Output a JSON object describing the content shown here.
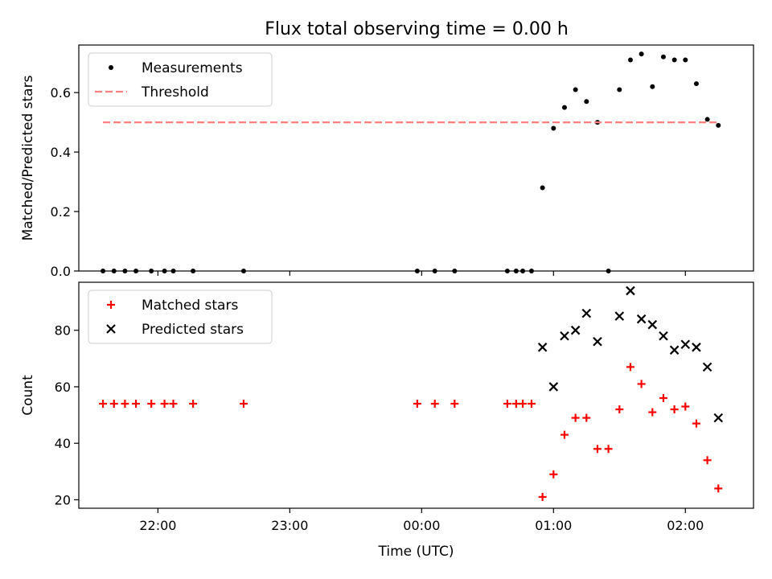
{
  "title": "Flux total observing time = 0.00 h",
  "colors": {
    "measurements": "#000000",
    "threshold": "#ff7f7f",
    "matched": "#ff0000",
    "predicted": "#000000"
  },
  "chart_data": [
    {
      "type": "scatter",
      "title": "Flux total observing time = 0.00 h",
      "xlabel": "",
      "ylabel": "Matched/Predicted stars",
      "xlim": [
        "21:24",
        "02:31"
      ],
      "ylim": [
        0,
        0.76
      ],
      "x_ticks": [
        "22:00",
        "23:00",
        "00:00",
        "01:00",
        "02:00"
      ],
      "y_ticks": [
        "0.0",
        "0.2",
        "0.4",
        "0.6"
      ],
      "legend": {
        "position": "top-left",
        "entries": [
          "Measurements",
          "Threshold"
        ]
      },
      "grid": false,
      "series": [
        {
          "name": "Measurements",
          "marker": "dot",
          "points": [
            [
              "21:35",
              0
            ],
            [
              "21:40",
              0
            ],
            [
              "21:45",
              0
            ],
            [
              "21:50",
              0
            ],
            [
              "21:57",
              0
            ],
            [
              "22:03",
              0
            ],
            [
              "22:07",
              0
            ],
            [
              "22:16",
              0
            ],
            [
              "22:39",
              0
            ],
            [
              "23:58",
              0
            ],
            [
              "00:06",
              0
            ],
            [
              "00:15",
              0
            ],
            [
              "00:39",
              0
            ],
            [
              "00:43",
              0
            ],
            [
              "00:46",
              0
            ],
            [
              "00:50",
              0
            ],
            [
              "00:55",
              0.28
            ],
            [
              "01:00",
              0.48
            ],
            [
              "01:05",
              0.55
            ],
            [
              "01:10",
              0.61
            ],
            [
              "01:15",
              0.57
            ],
            [
              "01:20",
              0.5
            ],
            [
              "01:25",
              0
            ],
            [
              "01:30",
              0.61
            ],
            [
              "01:35",
              0.71
            ],
            [
              "01:40",
              0.73
            ],
            [
              "01:45",
              0.62
            ],
            [
              "01:50",
              0.72
            ],
            [
              "01:55",
              0.71
            ],
            [
              "02:00",
              0.71
            ],
            [
              "02:05",
              0.63
            ],
            [
              "02:10",
              0.51
            ],
            [
              "02:15",
              0.49
            ]
          ]
        },
        {
          "name": "Threshold",
          "style": "dashed-line",
          "x": [
            "21:35",
            "02:15"
          ],
          "y": [
            0.5,
            0.5
          ]
        }
      ]
    },
    {
      "type": "scatter",
      "xlabel": "Time (UTC)",
      "ylabel": "Count",
      "xlim": [
        "21:24",
        "02:31"
      ],
      "ylim": [
        17,
        97
      ],
      "x_ticks": [
        "22:00",
        "23:00",
        "00:00",
        "01:00",
        "02:00"
      ],
      "y_ticks": [
        "20",
        "40",
        "60",
        "80"
      ],
      "legend": {
        "position": "top-left",
        "entries": [
          "Matched stars",
          "Predicted stars"
        ]
      },
      "grid": false,
      "series": [
        {
          "name": "Matched stars",
          "marker": "plus",
          "points": [
            [
              "21:35",
              54
            ],
            [
              "21:40",
              54
            ],
            [
              "21:45",
              54
            ],
            [
              "21:50",
              54
            ],
            [
              "21:57",
              54
            ],
            [
              "22:03",
              54
            ],
            [
              "22:07",
              54
            ],
            [
              "22:16",
              54
            ],
            [
              "22:39",
              54
            ],
            [
              "23:58",
              54
            ],
            [
              "00:06",
              54
            ],
            [
              "00:15",
              54
            ],
            [
              "00:39",
              54
            ],
            [
              "00:43",
              54
            ],
            [
              "00:46",
              54
            ],
            [
              "00:50",
              54
            ],
            [
              "00:55",
              21
            ],
            [
              "01:00",
              29
            ],
            [
              "01:05",
              43
            ],
            [
              "01:10",
              49
            ],
            [
              "01:15",
              49
            ],
            [
              "01:20",
              38
            ],
            [
              "01:25",
              38
            ],
            [
              "01:30",
              52
            ],
            [
              "01:35",
              67
            ],
            [
              "01:40",
              61
            ],
            [
              "01:45",
              51
            ],
            [
              "01:50",
              56
            ],
            [
              "01:55",
              52
            ],
            [
              "02:00",
              53
            ],
            [
              "02:05",
              47
            ],
            [
              "02:10",
              34
            ],
            [
              "02:15",
              24
            ]
          ]
        },
        {
          "name": "Predicted stars",
          "marker": "x",
          "points": [
            [
              "00:55",
              74
            ],
            [
              "01:00",
              60
            ],
            [
              "01:05",
              78
            ],
            [
              "01:10",
              80
            ],
            [
              "01:15",
              86
            ],
            [
              "01:20",
              76
            ],
            [
              "01:30",
              85
            ],
            [
              "01:35",
              94
            ],
            [
              "01:40",
              84
            ],
            [
              "01:45",
              82
            ],
            [
              "01:50",
              78
            ],
            [
              "01:55",
              73
            ],
            [
              "02:00",
              75
            ],
            [
              "02:05",
              74
            ],
            [
              "02:10",
              67
            ],
            [
              "02:15",
              49
            ]
          ]
        }
      ]
    }
  ]
}
